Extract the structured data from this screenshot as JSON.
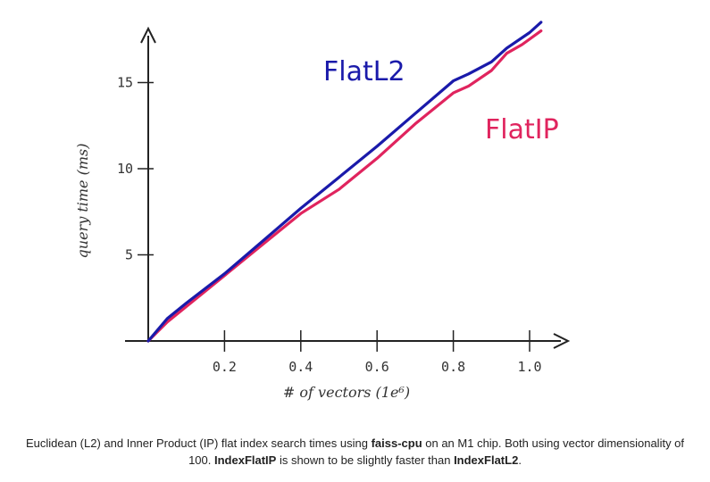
{
  "chart_data": {
    "type": "line",
    "xlabel": "# of vectors (1e⁶)",
    "ylabel": "query time (ms)",
    "xlim": [
      0,
      1.05
    ],
    "ylim": [
      0,
      18.5
    ],
    "x_ticks": [
      "0.2",
      "0.4",
      "0.6",
      "0.8",
      "1.0"
    ],
    "y_ticks": [
      "5",
      "10",
      "15"
    ],
    "grid": false,
    "series": [
      {
        "name": "FlatL2",
        "color": "#1a1aaa",
        "x": [
          0,
          0.05,
          0.1,
          0.2,
          0.3,
          0.4,
          0.5,
          0.6,
          0.7,
          0.8,
          0.84,
          0.9,
          0.94,
          1.0,
          1.03
        ],
        "y": [
          0,
          1.3,
          2.2,
          3.9,
          5.8,
          7.7,
          9.5,
          11.3,
          13.2,
          15.1,
          15.5,
          16.2,
          17.0,
          17.9,
          18.5
        ]
      },
      {
        "name": "FlatIP",
        "color": "#e0245e",
        "x": [
          0,
          0.05,
          0.1,
          0.2,
          0.3,
          0.4,
          0.5,
          0.6,
          0.7,
          0.8,
          0.84,
          0.9,
          0.94,
          0.98,
          1.03
        ],
        "y": [
          0,
          1.1,
          2.0,
          3.8,
          5.6,
          7.4,
          8.8,
          10.6,
          12.6,
          14.4,
          14.8,
          15.7,
          16.7,
          17.2,
          18.0
        ]
      }
    ]
  },
  "caption": {
    "part1": "Euclidean (L2) and Inner Product (IP) flat index search times using ",
    "bold1": "faiss-cpu",
    "part2": " on an M1 chip. Both using vector dimensionality of 100. ",
    "bold2": "IndexFlatIP",
    "part3": " is shown to be slightly faster than ",
    "bold3": "IndexFlatL2",
    "part4": "."
  }
}
